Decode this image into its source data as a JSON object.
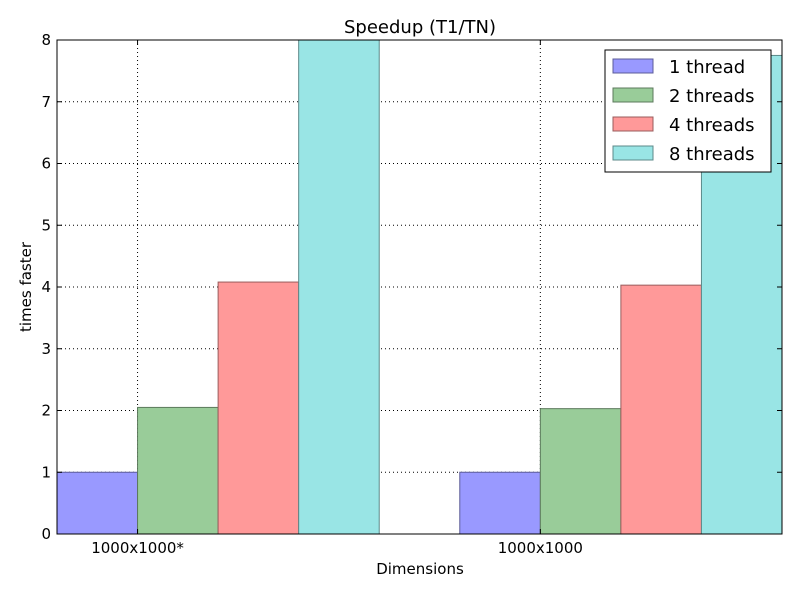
{
  "chart_data": {
    "type": "bar",
    "title": "Speedup (T1/TN)",
    "xlabel": "Dimensions",
    "ylabel": "times faster",
    "categories": [
      "1000x1000*",
      "1000x1000"
    ],
    "series": [
      {
        "name": "1 thread",
        "values": [
          1.0,
          1.0
        ],
        "color": "#9999ff",
        "edge": "#5c5c99"
      },
      {
        "name": "2 threads",
        "values": [
          2.05,
          2.03
        ],
        "color": "#99cc99",
        "edge": "#5c7a5c"
      },
      {
        "name": "4 threads",
        "values": [
          4.08,
          4.03
        ],
        "color": "#ff9999",
        "edge": "#995c5c"
      },
      {
        "name": "8 threads",
        "values": [
          8.05,
          7.75
        ],
        "color": "#99e5e5",
        "edge": "#5c8989"
      }
    ],
    "ylim": [
      0,
      8
    ],
    "yticks": [
      "0",
      "1",
      "2",
      "3",
      "4",
      "5",
      "6",
      "7",
      "8"
    ],
    "xlim": [
      0,
      1.8
    ],
    "bar_width": 0.2,
    "grid": true,
    "legend_position": "top-right"
  }
}
